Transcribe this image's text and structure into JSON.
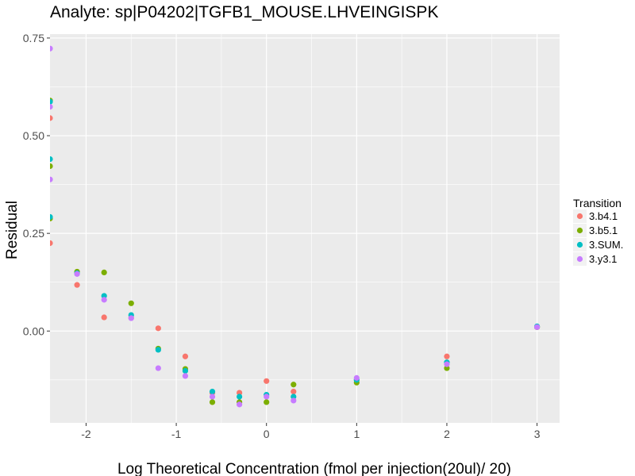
{
  "chart_data": {
    "type": "scatter",
    "title": "Analyte: sp|P04202|TGFB1_MOUSE.LHVEINGISPK",
    "xlabel": "Log Theoretical Concentration (fmol per injection(20ul)/ 20)",
    "ylabel": "Residual",
    "xlim": [
      -2.4,
      3.25
    ],
    "ylim": [
      -0.235,
      0.76
    ],
    "x_ticks": [
      -2,
      -1,
      0,
      1,
      2,
      3
    ],
    "x_tick_labels": [
      "-2",
      "-1",
      "0",
      "1",
      "2",
      "3"
    ],
    "y_ticks": [
      0.0,
      0.25,
      0.5,
      0.75
    ],
    "y_tick_labels": [
      "0.00",
      "0.25",
      "0.50",
      "0.75"
    ],
    "grid": true,
    "legend": {
      "title": "Transition",
      "placement": "right"
    },
    "series": [
      {
        "name": "3.b4.1",
        "color": "#F8766D",
        "points": [
          [
            -2.4,
            0.545
          ],
          [
            -2.4,
            0.225
          ],
          [
            -2.1,
            0.118
          ],
          [
            -1.8,
            0.035
          ],
          [
            -1.5,
            0.034
          ],
          [
            -1.2,
            0.007
          ],
          [
            -0.9,
            -0.065
          ],
          [
            -0.6,
            -0.158
          ],
          [
            -0.3,
            -0.158
          ],
          [
            0.0,
            -0.128
          ],
          [
            0.3,
            -0.155
          ],
          [
            1.0,
            -0.125
          ],
          [
            2.0,
            -0.065
          ],
          [
            3.0,
            0.01
          ]
        ]
      },
      {
        "name": "3.b5.1",
        "color": "#7CAE00",
        "points": [
          [
            -2.4,
            0.59
          ],
          [
            -2.4,
            0.422
          ],
          [
            -2.4,
            0.288
          ],
          [
            -2.1,
            0.152
          ],
          [
            -1.8,
            0.15
          ],
          [
            -1.5,
            0.071
          ],
          [
            -1.2,
            -0.045
          ],
          [
            -0.9,
            -0.097
          ],
          [
            -0.6,
            -0.182
          ],
          [
            -0.3,
            -0.182
          ],
          [
            0.0,
            -0.182
          ],
          [
            0.3,
            -0.137
          ],
          [
            1.0,
            -0.132
          ],
          [
            2.0,
            -0.095
          ],
          [
            3.0,
            0.01
          ]
        ]
      },
      {
        "name": "3.SUM.",
        "color": "#00BFC4",
        "points": [
          [
            -2.4,
            0.587
          ],
          [
            -2.4,
            0.44
          ],
          [
            -2.4,
            0.292
          ],
          [
            -2.1,
            0.148
          ],
          [
            -1.8,
            0.09
          ],
          [
            -1.5,
            0.041
          ],
          [
            -1.2,
            -0.048
          ],
          [
            -0.9,
            -0.102
          ],
          [
            -0.6,
            -0.155
          ],
          [
            -0.3,
            -0.168
          ],
          [
            0.0,
            -0.163
          ],
          [
            0.3,
            -0.168
          ],
          [
            1.0,
            -0.125
          ],
          [
            2.0,
            -0.08
          ],
          [
            3.0,
            0.012
          ]
        ]
      },
      {
        "name": "3.y3.1",
        "color": "#C77CFF",
        "points": [
          [
            -2.4,
            0.723
          ],
          [
            -2.4,
            0.574
          ],
          [
            -2.4,
            0.388
          ],
          [
            -2.1,
            0.146
          ],
          [
            -1.8,
            0.08
          ],
          [
            -1.5,
            0.033
          ],
          [
            -1.2,
            -0.095
          ],
          [
            -0.9,
            -0.115
          ],
          [
            -0.6,
            -0.168
          ],
          [
            -0.3,
            -0.188
          ],
          [
            0.0,
            -0.168
          ],
          [
            0.3,
            -0.178
          ],
          [
            1.0,
            -0.12
          ],
          [
            2.0,
            -0.085
          ],
          [
            3.0,
            0.01
          ]
        ]
      }
    ]
  }
}
